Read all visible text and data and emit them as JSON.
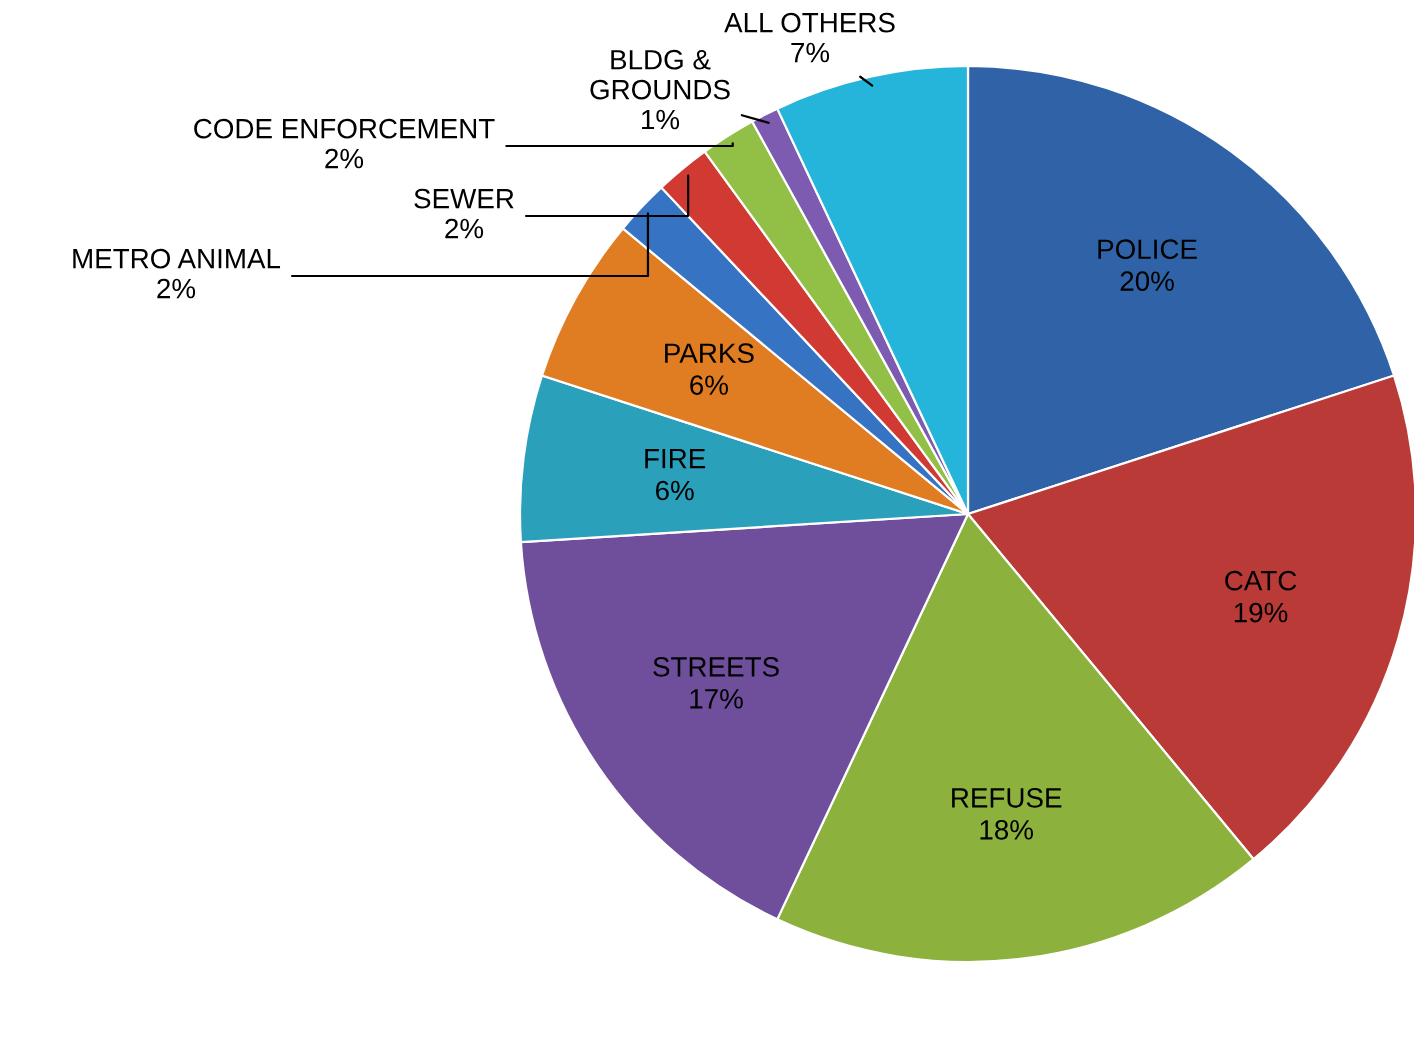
{
  "chart_data": {
    "type": "pie",
    "categories": [
      "POLICE",
      "CATC",
      "REFUSE",
      "STREETS",
      "FIRE",
      "PARKS",
      "METRO ANIMAL",
      "SEWER",
      "CODE ENFORCEMENT",
      "BLDG & GROUNDS",
      "ALL OTHERS"
    ],
    "values": [
      20,
      19,
      18,
      17,
      6,
      6,
      2,
      2,
      2,
      1,
      7
    ],
    "colors": [
      "#2f62a6",
      "#b93a36",
      "#8cb13c",
      "#6f4f9c",
      "#2aa0ba",
      "#e07c22",
      "#3673c2",
      "#d13a32",
      "#92bf45",
      "#7d5bb0",
      "#26b5da"
    ],
    "value_labels": [
      "20%",
      "19%",
      "18%",
      "17%",
      "6%",
      "6%",
      "2%",
      "2%",
      "2%",
      "1%",
      "7%"
    ],
    "legend": false
  }
}
